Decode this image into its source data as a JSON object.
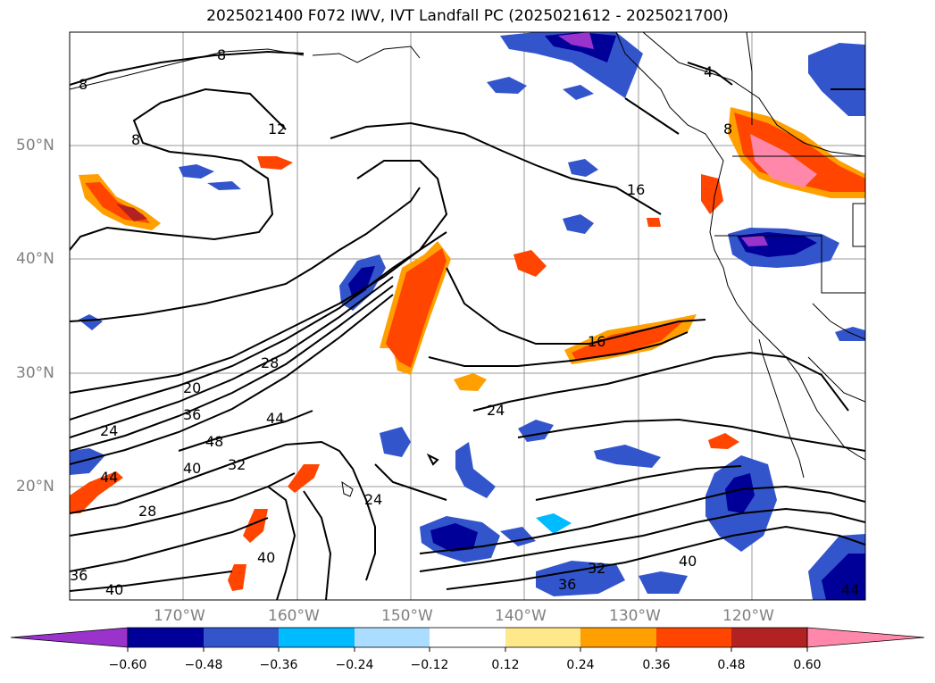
{
  "title": "2025021400 F072 IWV, IVT Landfall PC (2025021612 - 2025021700)",
  "lat_labels": [
    "50°N",
    "40°N",
    "30°N",
    "20°N"
  ],
  "lon_labels": [
    "170°W",
    "160°W",
    "150°W",
    "140°W",
    "130°W",
    "120°W"
  ],
  "colorbar": {
    "ticks": [
      "−0.60",
      "−0.48",
      "−0.36",
      "−0.24",
      "−0.12",
      "0.12",
      "0.24",
      "0.36",
      "0.48",
      "0.60"
    ],
    "colors": [
      "#9933cc",
      "#000099",
      "#3355cc",
      "#00bbff",
      "#aaddff",
      "#ffffff",
      "#ffe88a",
      "#ffa000",
      "#ff4500",
      "#b22222",
      "#ff88aa"
    ]
  },
  "contour_labels": [
    "8",
    "8",
    "8",
    "12",
    "16",
    "16",
    "8",
    "4",
    "20",
    "24",
    "28",
    "36",
    "44",
    "48",
    "40",
    "32",
    "28",
    "44",
    "40",
    "24",
    "24",
    "40",
    "32",
    "36",
    "40",
    "44",
    "36"
  ]
}
